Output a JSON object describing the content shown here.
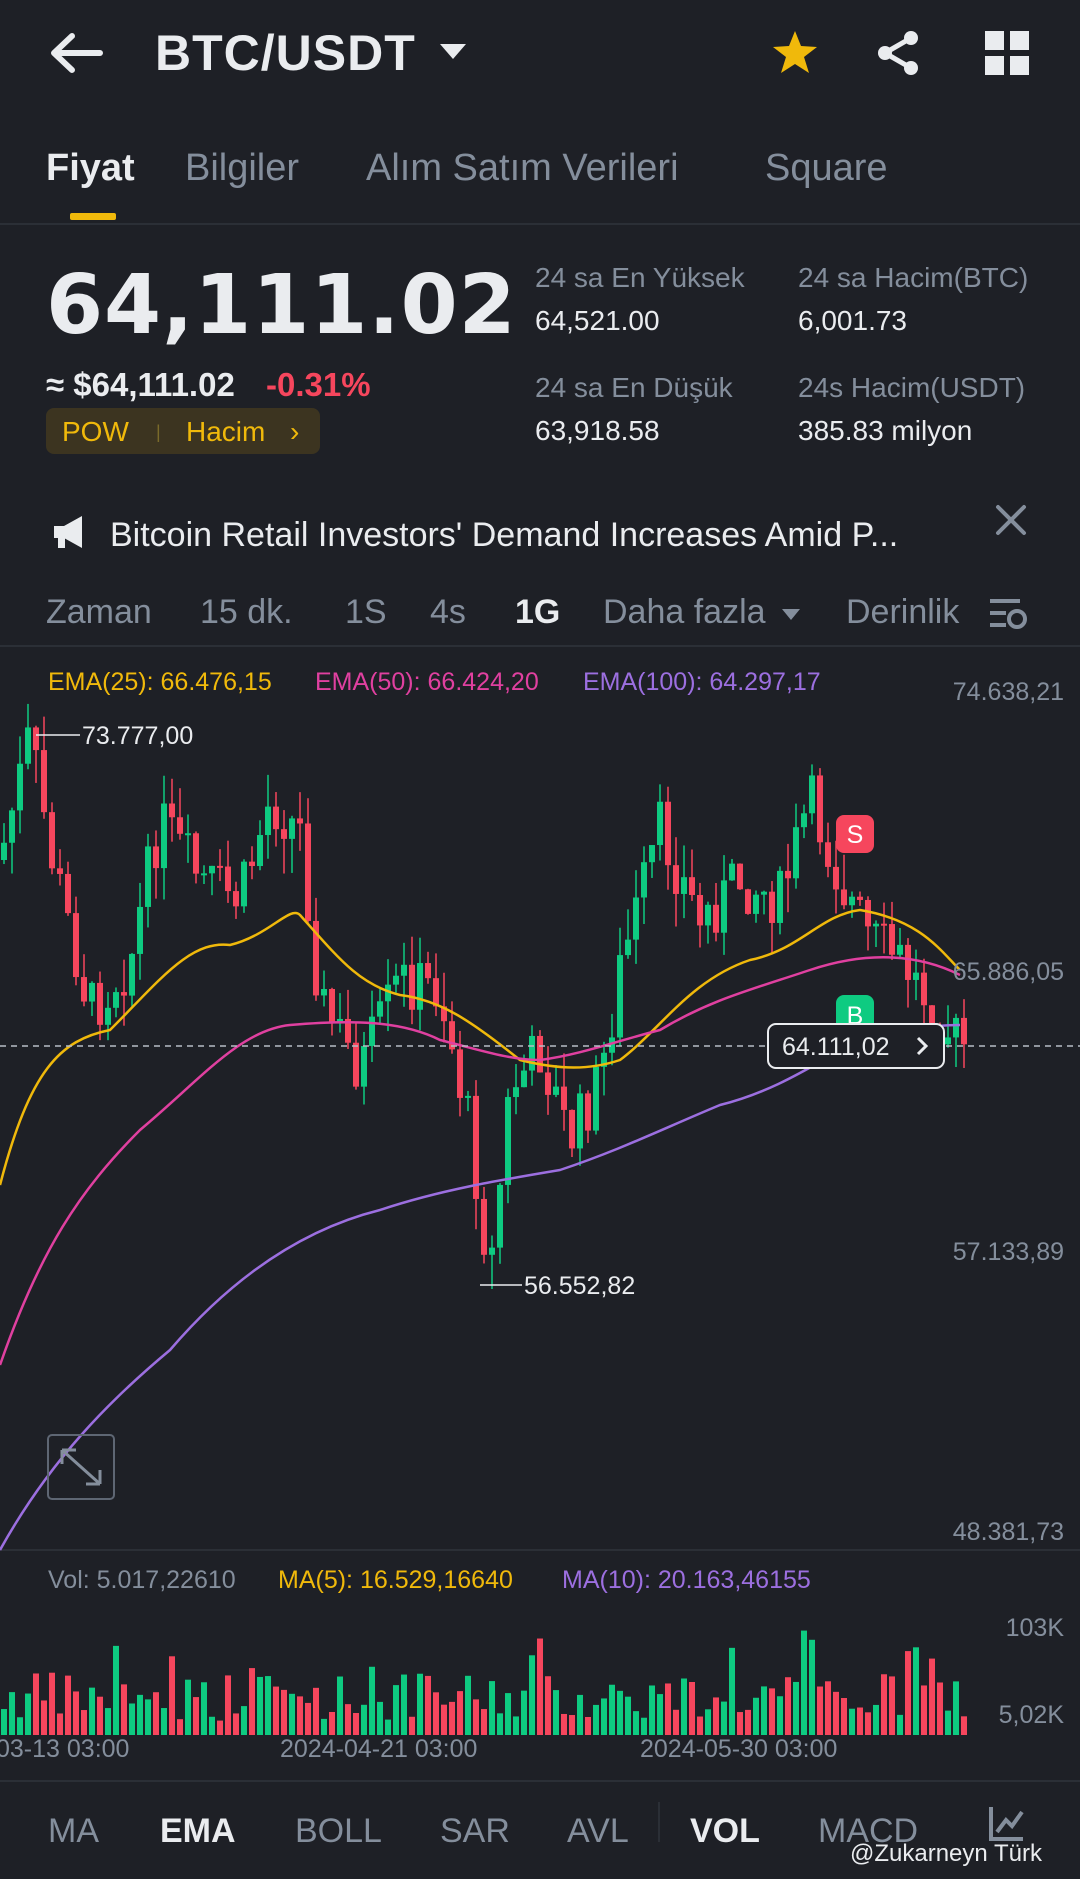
{
  "header": {
    "pair": "BTC/USDT",
    "favorite_color": "#f0b90b"
  },
  "tabs": [
    {
      "label": "Fiyat",
      "active": true
    },
    {
      "label": "Bilgiler"
    },
    {
      "label": "Alım Satım Verileri"
    },
    {
      "label": "Square"
    }
  ],
  "price": {
    "last": "64,111.02",
    "usd": "≈ $64,111.02",
    "change": "-0.31%",
    "tag_pow": "POW",
    "tag_volume": "Hacim"
  },
  "stats": {
    "high_label": "24 sa En Yüksek",
    "high_value": "64,521.00",
    "low_label": "24 sa En Düşük",
    "low_value": "63,918.58",
    "vol_btc_label": "24 sa Hacim(BTC)",
    "vol_btc_value": "6,001.73",
    "vol_usdt_label": "24s Hacim(USDT)",
    "vol_usdt_value": "385.83 milyon"
  },
  "news": {
    "text": "Bitcoin Retail Investors' Demand Increases Amid P..."
  },
  "timeframes": [
    {
      "label": "Zaman"
    },
    {
      "label": "15 dk."
    },
    {
      "label": "1S"
    },
    {
      "label": "4s"
    },
    {
      "label": "1G",
      "active": true
    },
    {
      "label": "Daha fazla"
    },
    {
      "label": "Derinlik"
    }
  ],
  "indicators": {
    "ema25": "EMA(25): 66.476,15",
    "ema50": "EMA(50): 66.424,20",
    "ema100": "EMA(100): 64.297,17",
    "vol": "Vol: 5.017,22610",
    "ma5": "MA(5): 16.529,16640",
    "ma10": "MA(10): 20.163,46155",
    "colors": {
      "ema25": "#f0b90b",
      "ema50": "#e040a0",
      "ema100": "#9c6fe0",
      "up": "#0ecb81",
      "down": "#f6465d"
    }
  },
  "chart_data": {
    "type": "candlestick",
    "y_axis_ticks": [
      "74.638,21",
      "65.886,05",
      "57.133,89",
      "48.381,73"
    ],
    "ylim": [
      48381.73,
      74638.21
    ],
    "high_label": "73.777,00",
    "low_label": "56.552,82",
    "current_price_label": "64.111,02",
    "signals": [
      {
        "label": "S"
      },
      {
        "label": "B"
      }
    ],
    "volume_ticks": [
      "103K",
      "5,02K"
    ],
    "x_ticks": [
      "03-13 03:00",
      "2024-04-21 03:00",
      "2024-05-30 03:00"
    ]
  },
  "bottom_nav": [
    {
      "label": "MA"
    },
    {
      "label": "EMA",
      "active": true
    },
    {
      "label": "BOLL"
    },
    {
      "label": "SAR"
    },
    {
      "label": "AVL"
    },
    {
      "label": "VOL",
      "active": true
    },
    {
      "label": "MACD"
    }
  ],
  "watermark": "@Zukarneyn Türk"
}
